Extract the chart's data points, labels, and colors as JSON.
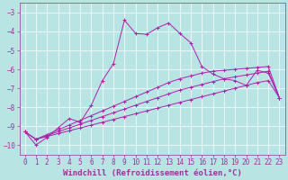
{
  "line_main": {
    "x": [
      0,
      1,
      2,
      3,
      4,
      5,
      6,
      7,
      8,
      9,
      10,
      11,
      12,
      13,
      14,
      15,
      16,
      17,
      18,
      19,
      20,
      21,
      22,
      23
    ],
    "y": [
      -9.3,
      -10.0,
      -9.6,
      -9.1,
      -8.6,
      -8.8,
      -7.9,
      -6.6,
      -5.7,
      -3.4,
      -4.1,
      -4.15,
      -3.8,
      -3.55,
      -4.1,
      -4.6,
      -5.85,
      -6.25,
      -6.5,
      -6.6,
      -6.85,
      -6.05,
      -6.2,
      -7.5
    ]
  },
  "line_a": {
    "x": [
      0,
      1,
      2,
      3,
      4,
      5,
      6,
      7,
      8,
      9,
      10,
      11,
      12,
      13,
      14,
      15,
      16,
      17,
      18,
      19,
      20,
      21,
      22,
      23
    ],
    "y": [
      -9.3,
      -9.7,
      -9.55,
      -9.4,
      -9.25,
      -9.1,
      -8.95,
      -8.8,
      -8.65,
      -8.5,
      -8.35,
      -8.2,
      -8.05,
      -7.9,
      -7.75,
      -7.6,
      -7.45,
      -7.3,
      -7.15,
      -7.0,
      -6.85,
      -6.7,
      -6.6,
      -7.5
    ]
  },
  "line_b": {
    "x": [
      0,
      1,
      2,
      3,
      4,
      5,
      6,
      7,
      8,
      9,
      10,
      11,
      12,
      13,
      14,
      15,
      16,
      17,
      18,
      19,
      20,
      21,
      22,
      23
    ],
    "y": [
      -9.3,
      -9.7,
      -9.5,
      -9.3,
      -9.1,
      -8.9,
      -8.7,
      -8.5,
      -8.3,
      -8.1,
      -7.9,
      -7.7,
      -7.5,
      -7.3,
      -7.1,
      -6.95,
      -6.8,
      -6.65,
      -6.5,
      -6.4,
      -6.3,
      -6.2,
      -6.1,
      -7.5
    ]
  },
  "line_c": {
    "x": [
      0,
      1,
      2,
      3,
      4,
      5,
      6,
      7,
      8,
      9,
      10,
      11,
      12,
      13,
      14,
      15,
      16,
      17,
      18,
      19,
      20,
      21,
      22,
      23
    ],
    "y": [
      -9.3,
      -9.7,
      -9.45,
      -9.2,
      -8.95,
      -8.7,
      -8.45,
      -8.2,
      -7.95,
      -7.7,
      -7.45,
      -7.2,
      -6.95,
      -6.7,
      -6.5,
      -6.35,
      -6.2,
      -6.1,
      -6.05,
      -6.0,
      -5.95,
      -5.9,
      -5.85,
      -7.5
    ]
  },
  "xlabel": "Windchill (Refroidissement éolien,°C)",
  "xlim": [
    -0.5,
    23.5
  ],
  "ylim": [
    -10.5,
    -2.5
  ],
  "yticks": [
    -10,
    -9,
    -8,
    -7,
    -6,
    -5,
    -4,
    -3
  ],
  "xticks": [
    0,
    1,
    2,
    3,
    4,
    5,
    6,
    7,
    8,
    9,
    10,
    11,
    12,
    13,
    14,
    15,
    16,
    17,
    18,
    19,
    20,
    21,
    22,
    23
  ],
  "bg_color": "#b8e4e4",
  "grid_color": "#d8f4f4",
  "line_color": "#aa22aa",
  "xlabel_color": "#993399",
  "tick_color": "#993399",
  "xlabel_fontsize": 6.5,
  "tick_fontsize": 5.5,
  "linewidth": 0.7,
  "markersize": 2.5,
  "fig_width": 3.2,
  "fig_height": 2.0,
  "dpi": 100
}
